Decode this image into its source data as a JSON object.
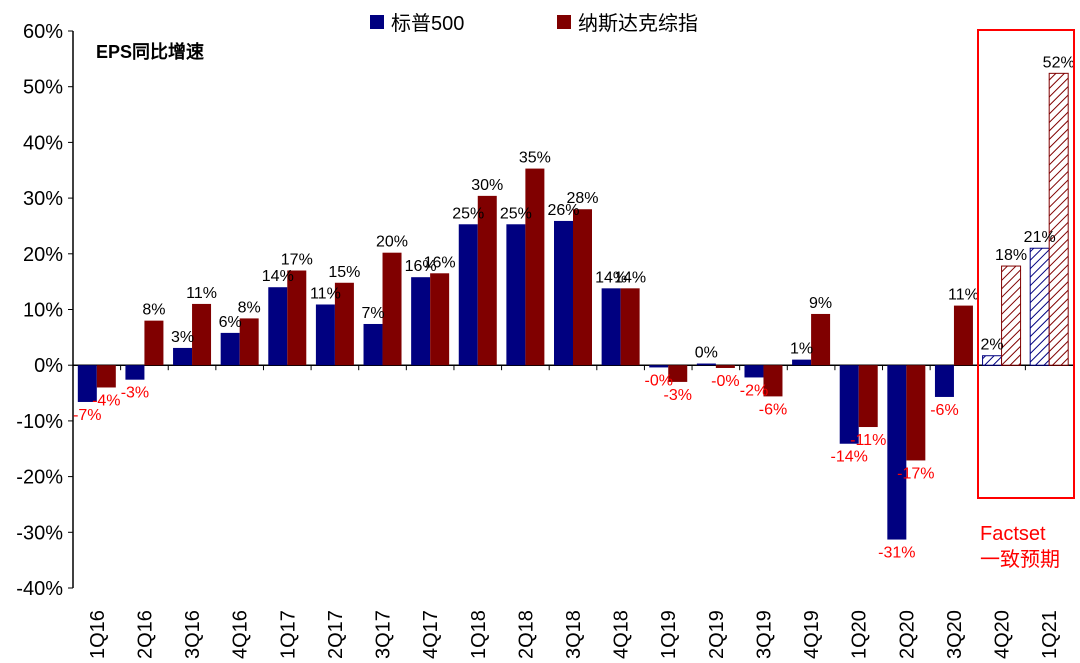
{
  "chart_data": {
    "type": "bar",
    "title": "EPS同比增速",
    "categories": [
      "1Q16",
      "2Q16",
      "3Q16",
      "4Q16",
      "1Q17",
      "2Q17",
      "3Q17",
      "4Q17",
      "1Q18",
      "2Q18",
      "3Q18",
      "4Q18",
      "1Q19",
      "2Q19",
      "3Q19",
      "4Q19",
      "1Q20",
      "2Q20",
      "3Q20",
      "4Q20",
      "1Q21"
    ],
    "series": [
      {
        "name": "标普500",
        "color": "#000080",
        "values": [
          -6.6,
          -2.6,
          3.1,
          5.8,
          14.0,
          10.9,
          7.4,
          15.8,
          25.3,
          25.3,
          25.9,
          13.8,
          -0.4,
          0.3,
          -2.2,
          1.0,
          -14.1,
          -31.3,
          -5.7,
          1.7,
          21.0
        ],
        "labels": [
          "-7%",
          "-3%",
          "3%",
          "6%",
          "14%",
          "11%",
          "7%",
          "16%",
          "25%",
          "25%",
          "26%",
          "14%",
          "-0%",
          "0%",
          "-2%",
          "1%",
          "-14%",
          "-31%",
          "-6%",
          "2%",
          "21%"
        ]
      },
      {
        "name": "纳斯达克综指",
        "color": "#800000",
        "values": [
          -4.0,
          8.0,
          11.0,
          8.4,
          17.0,
          14.8,
          20.2,
          16.5,
          30.4,
          35.3,
          28.0,
          13.8,
          -3.0,
          -0.5,
          -5.6,
          9.2,
          -11.1,
          -17.1,
          10.7,
          17.8,
          52.4
        ],
        "labels": [
          "-4%",
          "8%",
          "11%",
          "8%",
          "17%",
          "15%",
          "20%",
          "16%",
          "30%",
          "35%",
          "28%",
          "14%",
          "-3%",
          "-0%",
          "-6%",
          "9%",
          "-11%",
          "-17%",
          "11%",
          "18%",
          "52%"
        ]
      }
    ],
    "forecast_categories": [
      "4Q20",
      "1Q21"
    ],
    "ylim": [
      -40,
      60
    ],
    "yticks": [
      "60%",
      "50%",
      "40%",
      "30%",
      "20%",
      "10%",
      "0%",
      "-10%",
      "-20%",
      "-30%",
      "-40%"
    ],
    "grid": false,
    "legend_position": "top"
  },
  "annotation": {
    "line1": "Factset",
    "line2": "一致预期",
    "color": "#ff0000"
  },
  "label_colors": {
    "positive": "#000000",
    "negative": "#ff0000"
  }
}
